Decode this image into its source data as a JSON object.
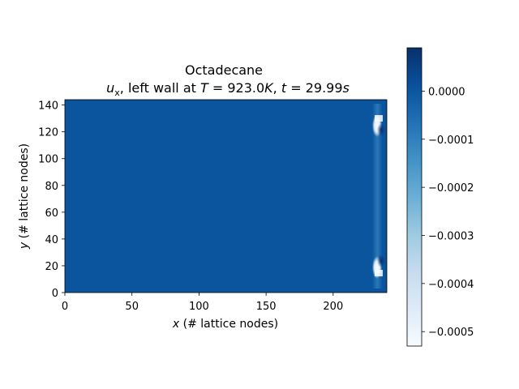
{
  "chart_data": {
    "type": "heatmap",
    "title": "Octadecane",
    "subtitle": {
      "var": "u",
      "sub": "x",
      "mid": ", left wall at ",
      "tvar": "T",
      "teq": " = 923.0",
      "tunit": "K",
      "sep": ", ",
      "timevar": "t",
      "timeeq": " = 29.99",
      "timeunit": "s"
    },
    "xlabel": {
      "var": "x",
      "rest": " (# lattice nodes)"
    },
    "ylabel": {
      "var": "y",
      "rest": " (# lattice nodes)"
    },
    "xlim": [
      0,
      240
    ],
    "ylim": [
      0,
      144
    ],
    "xticks": [
      0,
      50,
      100,
      150,
      200
    ],
    "yticks": [
      0,
      20,
      40,
      60,
      80,
      100,
      120,
      140
    ],
    "colorbar": {
      "vmin": -0.00053,
      "vmax": 9e-05,
      "ticks": [
        0.0,
        -0.0001,
        -0.0002,
        -0.0003,
        -0.0004,
        -0.0005
      ],
      "tick_labels": [
        "0.0000",
        "−0.0001",
        "−0.0002",
        "−0.0003",
        "−0.0004",
        "−0.0005"
      ],
      "colormap": "Blues",
      "stops": [
        "#f7fbff",
        "#deebf7",
        "#c6dbef",
        "#9ecae1",
        "#6baed6",
        "#4292c6",
        "#2171b5",
        "#08519c",
        "#08306b"
      ]
    },
    "background_value": 0.0,
    "features": [
      {
        "x": 235,
        "y": 130,
        "value": -0.00053
      },
      {
        "x": 235,
        "y": 15,
        "value": -0.00053
      },
      {
        "x": 236,
        "y": 121,
        "value": 8e-05
      },
      {
        "x": 236,
        "y": 24,
        "value": 8e-05
      }
    ]
  }
}
